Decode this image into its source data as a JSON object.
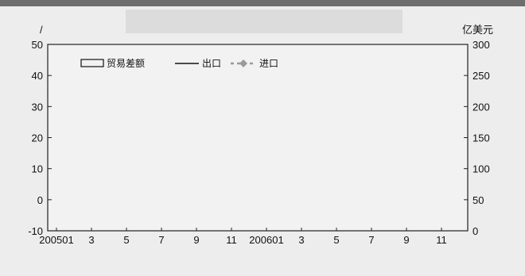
{
  "chart_data": {
    "type": "bar",
    "left_axis": {
      "unit": "/",
      "ticks": [
        "50",
        "40",
        "30",
        "20",
        "10",
        "0",
        "-10"
      ],
      "ylim": [
        -10,
        50
      ]
    },
    "right_axis": {
      "unit": "亿美元",
      "ticks": [
        "300",
        "250",
        "200",
        "150",
        "100",
        "50",
        "0"
      ],
      "ylim": [
        0,
        300
      ]
    },
    "x_tick_labels": [
      "200501",
      "3",
      "5",
      "7",
      "9",
      "11",
      "200601",
      "3",
      "5",
      "7",
      "9",
      "11"
    ],
    "legend": {
      "bar": "贸易差额",
      "export": "出口",
      "import": "进口"
    },
    "series": [
      {
        "name": "贸易差额",
        "type": "bar",
        "axis": "right",
        "values": []
      },
      {
        "name": "出口",
        "type": "line",
        "axis": "left",
        "values": []
      },
      {
        "name": "进口",
        "type": "line",
        "axis": "left",
        "values": []
      }
    ],
    "grid": false,
    "legend_position": "top-left"
  }
}
